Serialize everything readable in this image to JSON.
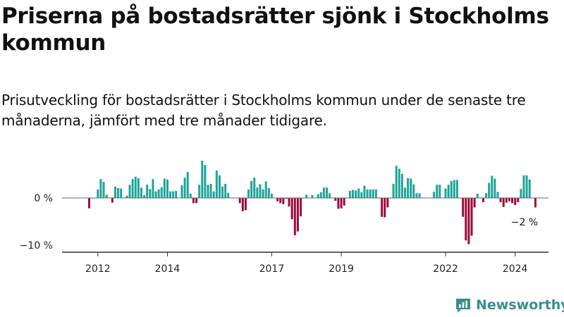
{
  "title": "Priserna på bostadsrätter sjönk i Stockholms kommun",
  "subtitle": "Prisutveckling för bostadsrätter i Stockholms kommun under de senaste tre månaderna, jämfört med tre månader tidigare.",
  "brand": "Newsworthy",
  "colors": {
    "positive": "#1ea59a",
    "negative": "#9c0a3c",
    "axis": "#333333",
    "baseline": "#666666"
  },
  "chart_data": {
    "type": "bar",
    "title": "Priserna på bostadsrätter sjönk i Stockholms kommun",
    "xlabel": "",
    "ylabel": "",
    "unit": "%",
    "start": "2011-01",
    "frequency": "monthly",
    "ylim": [
      -11.5,
      9.5
    ],
    "yticks": [
      {
        "value": 0,
        "label": "0 %"
      },
      {
        "value": -10,
        "label": "−10 %"
      }
    ],
    "xticks": [
      "2012",
      "2014",
      "2017",
      "2019",
      "2022",
      "2024"
    ],
    "end_label": "−2 %",
    "values": [
      0,
      0,
      0,
      0,
      0,
      0,
      0,
      0,
      0,
      -2.2,
      0,
      0,
      1.8,
      4.0,
      3.4,
      0.7,
      0,
      -1.0,
      2.4,
      2.1,
      2.0,
      0,
      0.5,
      2.8,
      4.0,
      4.5,
      4.2,
      2.2,
      0.6,
      2.8,
      1.9,
      4.0,
      1.4,
      1.8,
      2.3,
      4.1,
      3.9,
      1.4,
      1.4,
      1.5,
      0,
      2.7,
      4.3,
      5.5,
      0.9,
      -1.1,
      -1.1,
      2.8,
      7.9,
      7.0,
      2.8,
      3.0,
      1.4,
      5.8,
      4.8,
      2.4,
      3.0,
      1.1,
      0,
      0,
      0,
      -1.1,
      -2.8,
      -2.6,
      1.8,
      3.6,
      4.3,
      2.2,
      2.9,
      1.8,
      3.5,
      2.1,
      0.9,
      0,
      -0.7,
      -1.1,
      -1.3,
      -0.2,
      -1.8,
      -4.5,
      -7.9,
      -7.1,
      -3.9,
      0,
      0.7,
      0,
      0.6,
      0,
      0.8,
      1.2,
      2.2,
      2.2,
      1.0,
      0,
      -0.6,
      -2.3,
      -2.2,
      -1.6,
      0,
      1.5,
      1.7,
      1.6,
      2.0,
      1.2,
      2.6,
      1.8,
      1.8,
      1.8,
      1.8,
      0,
      -4.0,
      -4.1,
      -2.0,
      0,
      3.0,
      6.8,
      6.2,
      5.1,
      2.2,
      4.2,
      4.1,
      2.9,
      1.0,
      1.0,
      0,
      0,
      0,
      0,
      1.3,
      2.8,
      2.8,
      0,
      2.0,
      2.8,
      3.6,
      3.8,
      3.8,
      0,
      -4.0,
      -9.0,
      -9.8,
      -8.0,
      -2.0,
      0.9,
      0,
      -0.9,
      1.0,
      3.2,
      4.7,
      4.1,
      1.3,
      -0.9,
      -1.9,
      -1.0,
      -0.7,
      -1.1,
      -1.5,
      -0.9,
      1.9,
      4.8,
      4.8,
      3.9,
      0,
      -2.0
    ]
  }
}
